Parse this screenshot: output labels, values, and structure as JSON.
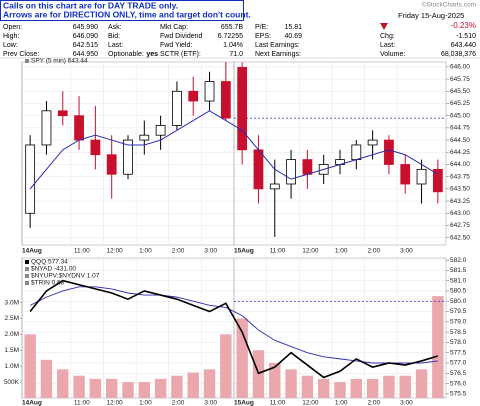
{
  "notice": [
    "Calls on this chart are for DAY TRADE only.",
    "Arrows are for DIRECTION ONLY, time and target don't count."
  ],
  "quote": {
    "cells": [
      {
        "label": "Open:",
        "value": "645.990"
      },
      {
        "label": "Ask:"
      },
      {
        "label": "Mkt Cap:",
        "value": "655.7B"
      },
      {
        "label": "P/E:",
        "value": "15.81"
      },
      {
        "label": "High:",
        "value": "646.090"
      },
      {
        "label": "Bid:"
      },
      {
        "label": "Fwd Dividend",
        "value": "6.72255"
      },
      {
        "label": "EPS:",
        "value": "40.69"
      },
      {
        "label": "Low:",
        "value": "642.515"
      },
      {
        "label": "Last:"
      },
      {
        "label": "Fwd Yield:",
        "value": "1.04%"
      },
      {
        "label": "Last Earnings:"
      },
      {
        "label": "Prev Close:",
        "value": "644.950"
      },
      {
        "label": "Optionable:",
        "value": "yes"
      },
      {
        "label": "SCTR (ETF):",
        "value": "71.0"
      },
      {
        "label": "Next Earnings:"
      }
    ],
    "copyright": "©StockCharts.com",
    "date": "Friday 15-Aug-2025",
    "change_pct": "-0.23%",
    "right": [
      {
        "label": "Chg:",
        "value": "-1.510"
      },
      {
        "label": "Last:",
        "value": "643.440"
      },
      {
        "label": "Volume:",
        "value": "68,038,376"
      }
    ]
  },
  "chart_data": [
    {
      "type": "candlestick",
      "legend": "SPY (5 min) 643.44",
      "x": [
        0,
        1,
        2,
        3,
        4,
        5,
        6,
        7,
        8,
        9,
        10,
        11,
        12,
        13,
        14,
        15,
        16,
        17,
        18,
        19,
        20,
        21,
        22,
        23,
        24,
        25
      ],
      "open": [
        643.0,
        644.4,
        645.1,
        645.0,
        644.5,
        644.2,
        643.8,
        644.5,
        644.6,
        644.8,
        645.5,
        645.3,
        645.7,
        645.99,
        644.3,
        643.5,
        643.6,
        644.1,
        643.8,
        644.0,
        644.1,
        644.4,
        644.5,
        644.0,
        643.6,
        643.9
      ],
      "high": [
        644.6,
        645.3,
        645.5,
        645.4,
        645.2,
        644.6,
        644.6,
        644.9,
        645.0,
        645.7,
        645.8,
        645.9,
        646.1,
        646.09,
        644.6,
        644.1,
        644.3,
        644.3,
        644.2,
        644.3,
        644.5,
        644.7,
        644.6,
        644.2,
        644.1,
        644.1
      ],
      "low": [
        642.7,
        644.2,
        644.8,
        644.3,
        643.9,
        643.3,
        643.7,
        644.2,
        644.3,
        644.7,
        645.0,
        645.1,
        644.9,
        644.0,
        643.2,
        642.515,
        643.3,
        643.5,
        643.6,
        643.8,
        643.9,
        644.1,
        643.8,
        643.4,
        643.2,
        643.2
      ],
      "close": [
        644.4,
        645.1,
        645.0,
        644.5,
        644.2,
        643.8,
        644.5,
        644.6,
        644.8,
        645.5,
        645.3,
        645.7,
        644.95,
        644.3,
        643.5,
        643.6,
        644.1,
        643.8,
        644.0,
        644.1,
        644.4,
        644.5,
        644.0,
        643.6,
        643.9,
        643.44
      ],
      "up_color": "#000000",
      "down_color": "#c8102e",
      "ma": {
        "color": "#2b2bb0",
        "values": [
          643.5,
          643.9,
          644.3,
          644.5,
          644.6,
          644.5,
          644.4,
          644.4,
          644.5,
          644.7,
          644.9,
          645.1,
          644.9,
          644.7,
          644.3,
          643.9,
          643.7,
          643.8,
          643.9,
          644.0,
          644.1,
          644.2,
          644.3,
          644.2,
          644.0,
          643.8
        ]
      },
      "reference_line": 644.95,
      "xlim": [
        -0.5,
        25.5
      ],
      "ylim": [
        642.35,
        646.1
      ],
      "yticks": [
        {
          "value": 642.5,
          "label": "642.50"
        },
        {
          "value": 642.75,
          "label": "642.75"
        },
        {
          "value": 643,
          "label": "643.00"
        },
        {
          "value": 643.25,
          "label": "643.25"
        },
        {
          "value": 643.5,
          "label": "643.50"
        },
        {
          "value": 643.75,
          "label": "643.75"
        },
        {
          "value": 644,
          "label": "644.00"
        },
        {
          "value": 644.25,
          "label": "644.25"
        },
        {
          "value": 644.5,
          "label": "644.50"
        },
        {
          "value": 644.75,
          "label": "644.75"
        },
        {
          "value": 645,
          "label": "645.00"
        },
        {
          "value": 645.25,
          "label": "645.25"
        },
        {
          "value": 645.5,
          "label": "645.50"
        },
        {
          "value": 645.75,
          "label": "645.75"
        },
        {
          "value": 646,
          "label": "646.00"
        }
      ],
      "xticks": [
        {
          "value": -0.5,
          "label": "14Aug"
        },
        {
          "value": 2.5,
          "label": "11:00"
        },
        {
          "value": 4.5,
          "label": "12:00"
        },
        {
          "value": 6.5,
          "label": "1:00"
        },
        {
          "value": 8.5,
          "label": "2:00"
        },
        {
          "value": 10.5,
          "label": "3:00"
        },
        {
          "value": 12.5,
          "label": "15Aug"
        },
        {
          "value": 14.5,
          "label": "11:00"
        },
        {
          "value": 16.5,
          "label": "12:00"
        },
        {
          "value": 18.5,
          "label": "1:00"
        },
        {
          "value": 20.5,
          "label": "2:00"
        },
        {
          "value": 22.5,
          "label": "3:00"
        }
      ],
      "grid": true
    },
    {
      "type": "line",
      "legend": [
        "QQQ 577.34",
        "$NYAD -431.00",
        "$NYUPV:$NYDNV 1.07",
        "$TRIN 0.68"
      ],
      "x": [
        0,
        1,
        2,
        3,
        4,
        5,
        6,
        7,
        8,
        9,
        10,
        11,
        12,
        13,
        14,
        15,
        16,
        17,
        18,
        19,
        20,
        21,
        22,
        23,
        24,
        25
      ],
      "series": [
        {
          "color": "#000000",
          "values": [
            579.5,
            580.5,
            581.0,
            580.8,
            580.6,
            580.4,
            580.1,
            580.5,
            580.3,
            580.1,
            579.8,
            579.5,
            579.9,
            578.5,
            576.5,
            576.8,
            577.5,
            576.9,
            576.3,
            576.6,
            577.2,
            576.8,
            577.0,
            576.9,
            577.1,
            577.34
          ]
        },
        {
          "color": "#2b2bb0",
          "values": [
            579.8,
            580.2,
            580.5,
            580.7,
            580.7,
            580.6,
            580.4,
            580.3,
            580.3,
            580.2,
            580.0,
            579.8,
            579.7,
            579.3,
            578.6,
            578.1,
            577.8,
            577.5,
            577.3,
            577.2,
            577.1,
            577.0,
            577.0,
            577.0,
            577.0,
            577.1
          ]
        }
      ],
      "volume": {
        "color": "#eaa7ae",
        "values": [
          2000000,
          1200000,
          900000,
          700000,
          600000,
          600000,
          500000,
          500000,
          600000,
          700000,
          800000,
          900000,
          2000000,
          2500000,
          1500000,
          1100000,
          900000,
          700000,
          600000,
          500000,
          600000,
          600000,
          700000,
          700000,
          900000,
          3200000
        ]
      },
      "reference_line": 580.0,
      "xlim": [
        -0.5,
        25.5
      ],
      "ylim": [
        575.3,
        582.1
      ],
      "yticks": [
        {
          "value": 575.5,
          "label": "575.5"
        },
        {
          "value": 576,
          "label": "576.0"
        },
        {
          "value": 576.5,
          "label": "576.5"
        },
        {
          "value": 577,
          "label": "577.0"
        },
        {
          "value": 577.5,
          "label": "577.5"
        },
        {
          "value": 578,
          "label": "578.0"
        },
        {
          "value": 578.5,
          "label": "578.5"
        },
        {
          "value": 579,
          "label": "579.0"
        },
        {
          "value": 579.5,
          "label": "579.5"
        },
        {
          "value": 580,
          "label": "580.0"
        },
        {
          "value": 580.5,
          "label": "580.5"
        },
        {
          "value": 581,
          "label": "581.0"
        },
        {
          "value": 581.5,
          "label": "581.5"
        },
        {
          "value": 582,
          "label": "582.0"
        }
      ],
      "vlim": [
        0,
        4400000
      ],
      "vticks": [
        {
          "value": 500000,
          "label": "500K"
        },
        {
          "value": 1000000,
          "label": "1.0M"
        },
        {
          "value": 1500000,
          "label": "1.5M"
        },
        {
          "value": 2000000,
          "label": "2.0M"
        },
        {
          "value": 2500000,
          "label": "2.5M"
        },
        {
          "value": 3000000,
          "label": "3.0M"
        }
      ],
      "xticks": [
        {
          "value": -0.5,
          "label": "14Aug"
        },
        {
          "value": 2.5,
          "label": "11:00"
        },
        {
          "value": 4.5,
          "label": "12:00"
        },
        {
          "value": 6.5,
          "label": "1:00"
        },
        {
          "value": 8.5,
          "label": "2:00"
        },
        {
          "value": 10.5,
          "label": "3:00"
        },
        {
          "value": 12.5,
          "label": "15Aug"
        },
        {
          "value": 14.5,
          "label": "11:00"
        },
        {
          "value": 16.5,
          "label": "12:00"
        },
        {
          "value": 18.5,
          "label": "1:00"
        },
        {
          "value": 20.5,
          "label": "2:00"
        },
        {
          "value": 22.5,
          "label": "3:00"
        }
      ],
      "grid": true
    }
  ]
}
